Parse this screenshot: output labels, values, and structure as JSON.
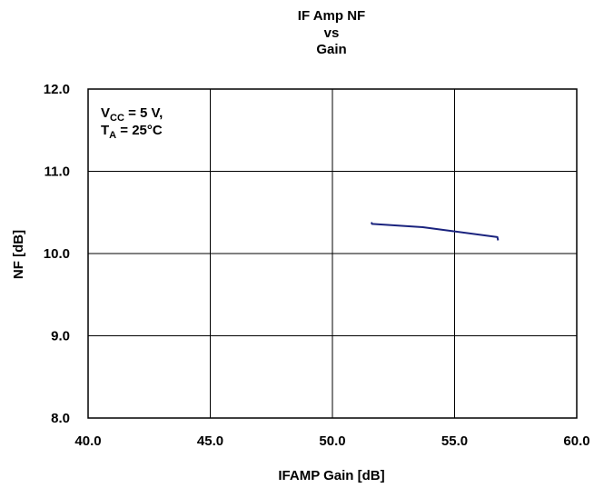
{
  "chart_data": {
    "type": "line",
    "title_lines": [
      "IF Amp NF",
      "vs",
      "Gain"
    ],
    "xlabel": "IFAMP Gain [dB]",
    "ylabel": "NF [dB]",
    "xlim": [
      40.0,
      60.0
    ],
    "ylim": [
      8.0,
      12.0
    ],
    "xticks": [
      "40.0",
      "45.0",
      "50.0",
      "55.0",
      "60.0"
    ],
    "yticks": [
      "8.0",
      "9.0",
      "10.0",
      "11.0",
      "12.0"
    ],
    "grid": true,
    "annotation": {
      "line1": {
        "main": "V",
        "sub": "CC",
        "rest": " = 5 V,"
      },
      "line2": {
        "main": "T",
        "sub": "A",
        "rest": " = 25°C"
      }
    },
    "series": [
      {
        "color": "#1a237e",
        "x": [
          51.6,
          51.62,
          53.7,
          56.75,
          56.78
        ],
        "y": [
          10.38,
          10.36,
          10.32,
          10.2,
          10.16
        ]
      }
    ]
  }
}
